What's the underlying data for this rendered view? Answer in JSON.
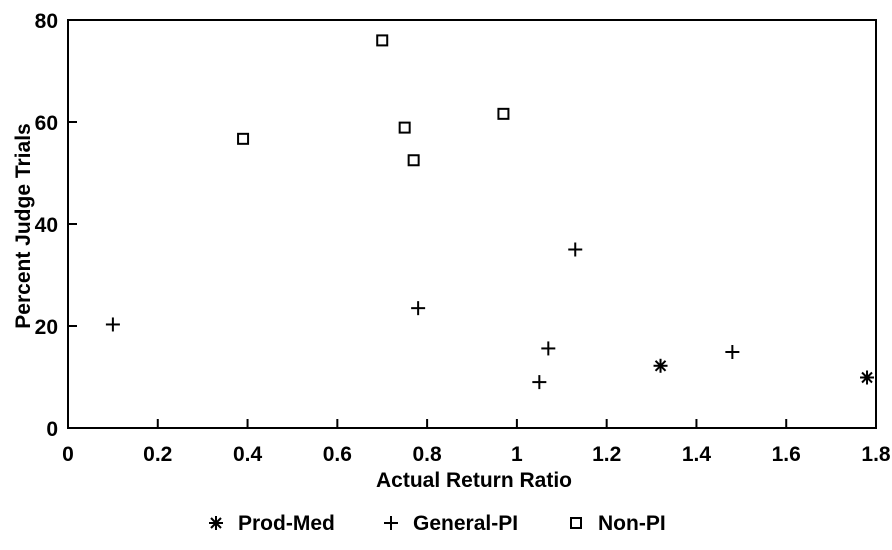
{
  "chart_data": {
    "type": "scatter",
    "title": "",
    "xlabel": "Actual Return Ratio",
    "ylabel": "Percent Judge Trials",
    "xlim": [
      0,
      1.8
    ],
    "ylim": [
      0,
      80
    ],
    "x_ticks": [
      "0",
      "0.2",
      "0.4",
      "0.6",
      "0.8",
      "1",
      "1.2",
      "1.4",
      "1.6",
      "1.8"
    ],
    "y_ticks": [
      "0",
      "20",
      "40",
      "60",
      "80"
    ],
    "grid": false,
    "legend_position": "bottom",
    "series": [
      {
        "name": "Prod-Med",
        "marker": "asterisk",
        "points": [
          {
            "x": 1.32,
            "y": 12.2
          },
          {
            "x": 1.78,
            "y": 9.9
          }
        ]
      },
      {
        "name": "General-PI",
        "marker": "plus",
        "points": [
          {
            "x": 0.1,
            "y": 20.3
          },
          {
            "x": 0.78,
            "y": 23.5
          },
          {
            "x": 1.05,
            "y": 9.0
          },
          {
            "x": 1.07,
            "y": 15.6
          },
          {
            "x": 1.13,
            "y": 35.0
          },
          {
            "x": 1.48,
            "y": 14.9
          }
        ]
      },
      {
        "name": "Non-PI",
        "marker": "square",
        "points": [
          {
            "x": 0.39,
            "y": 56.7
          },
          {
            "x": 0.7,
            "y": 76.0
          },
          {
            "x": 0.75,
            "y": 58.9
          },
          {
            "x": 0.77,
            "y": 52.5
          },
          {
            "x": 0.97,
            "y": 61.6
          }
        ]
      }
    ]
  }
}
